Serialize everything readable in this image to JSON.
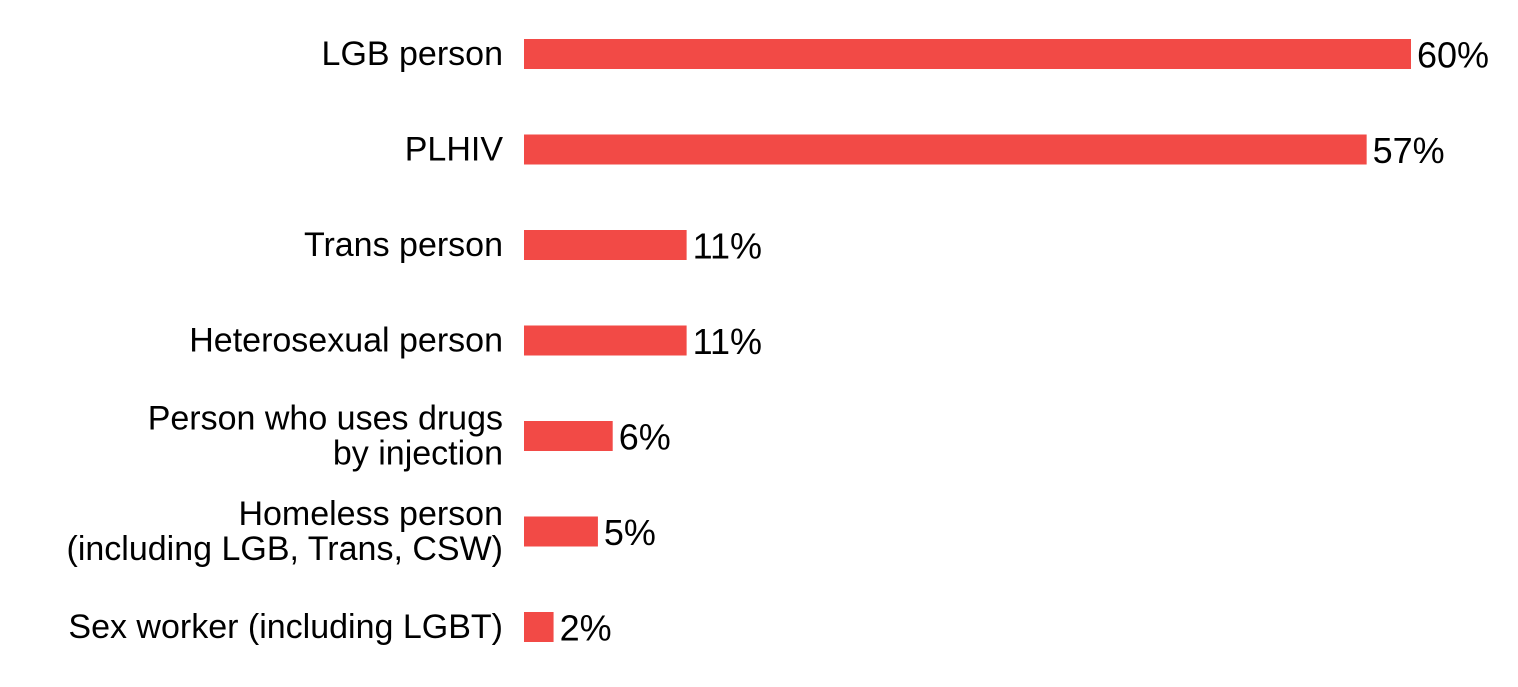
{
  "chart_data": {
    "type": "bar",
    "orientation": "horizontal",
    "categories": [
      [
        "LGB person"
      ],
      [
        "PLHIV"
      ],
      [
        "Trans person"
      ],
      [
        "Heterosexual person"
      ],
      [
        "Person who uses drugs",
        "by injection"
      ],
      [
        "Homeless person",
        "(including LGB, Trans, CSW)"
      ],
      [
        "Sex worker (including LGBT)"
      ]
    ],
    "values": [
      60,
      57,
      11,
      11,
      6,
      5,
      2
    ],
    "value_labels": [
      "60%",
      "57%",
      "11%",
      "11%",
      "6%",
      "5%",
      "2%"
    ],
    "value_unit": "%",
    "xlim": [
      0,
      60
    ],
    "grid": false,
    "legend": "none",
    "bar_color": "#f24a46"
  }
}
